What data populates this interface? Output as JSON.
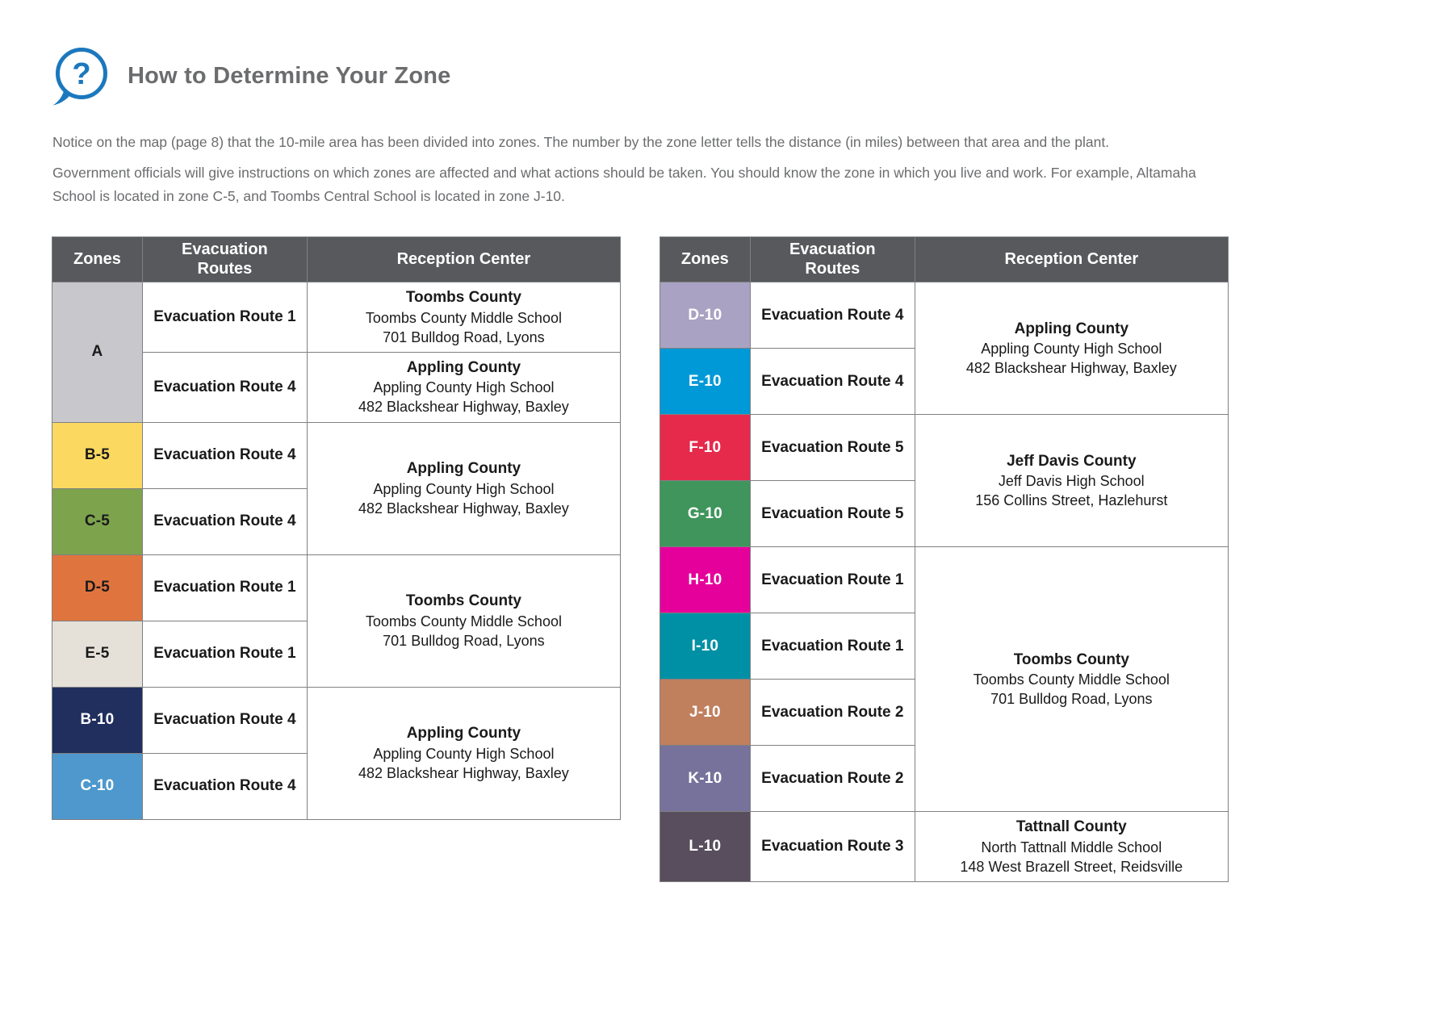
{
  "header": {
    "icon": "question-bubble-icon",
    "icon_color": "#1B78BE",
    "title": "How to Determine Your Zone"
  },
  "intro": {
    "paragraph1": "Notice on the map (page 8) that the 10-mile area has been divided into zones. The number by the zone letter tells the distance (in miles) between that area and the plant.",
    "paragraph2": "Government officials will give instructions on which zones are affected and what actions should be taken. You should know the zone in which you live and work. For example, Altamaha School is located in zone C-5, and Toombs Central School is located in zone J-10."
  },
  "colors": {
    "table_header_bg": "#58595C",
    "table_header_text": "#FFFFFF",
    "body_text": "#6B6C6E",
    "table_border": "#7F8082",
    "accent_blue": "#1B78BE"
  },
  "reception_centers": {
    "toombs": {
      "county": "Toombs County",
      "lines": [
        "Toombs County Middle School",
        "701 Bulldog Road, Lyons"
      ]
    },
    "appling": {
      "county": "Appling County",
      "lines": [
        "Appling County High School",
        "482 Blackshear Highway, Baxley"
      ]
    },
    "jeffdavis": {
      "county": "Jeff Davis County",
      "lines": [
        "Jeff Davis High School",
        "156 Collins Street, Hazlehurst"
      ]
    },
    "tattnall": {
      "county": "Tattnall County",
      "lines": [
        "North Tattnall Middle School",
        "148 West Brazell Street, Reidsville"
      ]
    }
  },
  "tables": [
    {
      "name": "zones-table-left",
      "headers": [
        "Zones",
        "Evacuation Routes",
        "Reception Center"
      ],
      "rows": [
        {
          "zone": {
            "label": "A",
            "bg": "#C8C7CC",
            "fg": "#1A1A1A",
            "span": 2
          },
          "route": "Evacuation Route 1",
          "reception": {
            "ref": "toombs",
            "span": 1
          }
        },
        {
          "route": "Evacuation Route 4",
          "reception": {
            "ref": "appling",
            "span": 1
          }
        },
        {
          "zone": {
            "label": "B-5",
            "bg": "#FBD961",
            "fg": "#1A1A1A",
            "span": 1
          },
          "route": "Evacuation Route 4",
          "reception": {
            "ref": "appling",
            "span": 2
          }
        },
        {
          "zone": {
            "label": "C-5",
            "bg": "#7DA34D",
            "fg": "#1A1A1A",
            "span": 1
          },
          "route": "Evacuation Route 4"
        },
        {
          "zone": {
            "label": "D-5",
            "bg": "#E0743F",
            "fg": "#1A1A1A",
            "span": 1
          },
          "route": "Evacuation Route 1",
          "reception": {
            "ref": "toombs",
            "span": 2
          }
        },
        {
          "zone": {
            "label": "E-5",
            "bg": "#E5E0D8",
            "fg": "#1A1A1A",
            "span": 1
          },
          "route": "Evacuation Route 1"
        },
        {
          "zone": {
            "label": "B-10",
            "bg": "#202F5E",
            "fg": "#FFFFFF",
            "span": 1
          },
          "route": "Evacuation Route 4",
          "reception": {
            "ref": "appling",
            "span": 2
          }
        },
        {
          "zone": {
            "label": "C-10",
            "bg": "#4E98CD",
            "fg": "#FFFFFF",
            "span": 1
          },
          "route": "Evacuation Route 4"
        }
      ]
    },
    {
      "name": "zones-table-right",
      "headers": [
        "Zones",
        "Evacuation Routes",
        "Reception Center"
      ],
      "rows": [
        {
          "zone": {
            "label": "D-10",
            "bg": "#A9A2C2",
            "fg": "#FFFFFF",
            "span": 1
          },
          "route": "Evacuation Route 4",
          "reception": {
            "ref": "appling",
            "span": 2
          }
        },
        {
          "zone": {
            "label": "E-10",
            "bg": "#0099D7",
            "fg": "#FFFFFF",
            "span": 1
          },
          "route": "Evacuation Route 4"
        },
        {
          "zone": {
            "label": "F-10",
            "bg": "#E62A4C",
            "fg": "#FFFFFF",
            "span": 1
          },
          "route": "Evacuation Route 5",
          "reception": {
            "ref": "jeffdavis",
            "span": 2
          }
        },
        {
          "zone": {
            "label": "G-10",
            "bg": "#3F955B",
            "fg": "#FFFFFF",
            "span": 1
          },
          "route": "Evacuation Route 5"
        },
        {
          "zone": {
            "label": "H-10",
            "bg": "#E5009B",
            "fg": "#FFFFFF",
            "span": 1
          },
          "route": "Evacuation Route 1",
          "reception": {
            "ref": "toombs",
            "span": 4
          }
        },
        {
          "zone": {
            "label": "I-10",
            "bg": "#0090A5",
            "fg": "#FFFFFF",
            "span": 1
          },
          "route": "Evacuation Route 1"
        },
        {
          "zone": {
            "label": "J-10",
            "bg": "#C0805E",
            "fg": "#FFFFFF",
            "span": 1
          },
          "route": "Evacuation Route 2"
        },
        {
          "zone": {
            "label": "K-10",
            "bg": "#77729B",
            "fg": "#FFFFFF",
            "span": 1
          },
          "route": "Evacuation Route 2"
        },
        {
          "zone": {
            "label": "L-10",
            "bg": "#594E5D",
            "fg": "#FFFFFF",
            "span": 1
          },
          "route": "Evacuation Route 3",
          "reception": {
            "ref": "tattnall",
            "span": 1
          }
        }
      ]
    }
  ]
}
